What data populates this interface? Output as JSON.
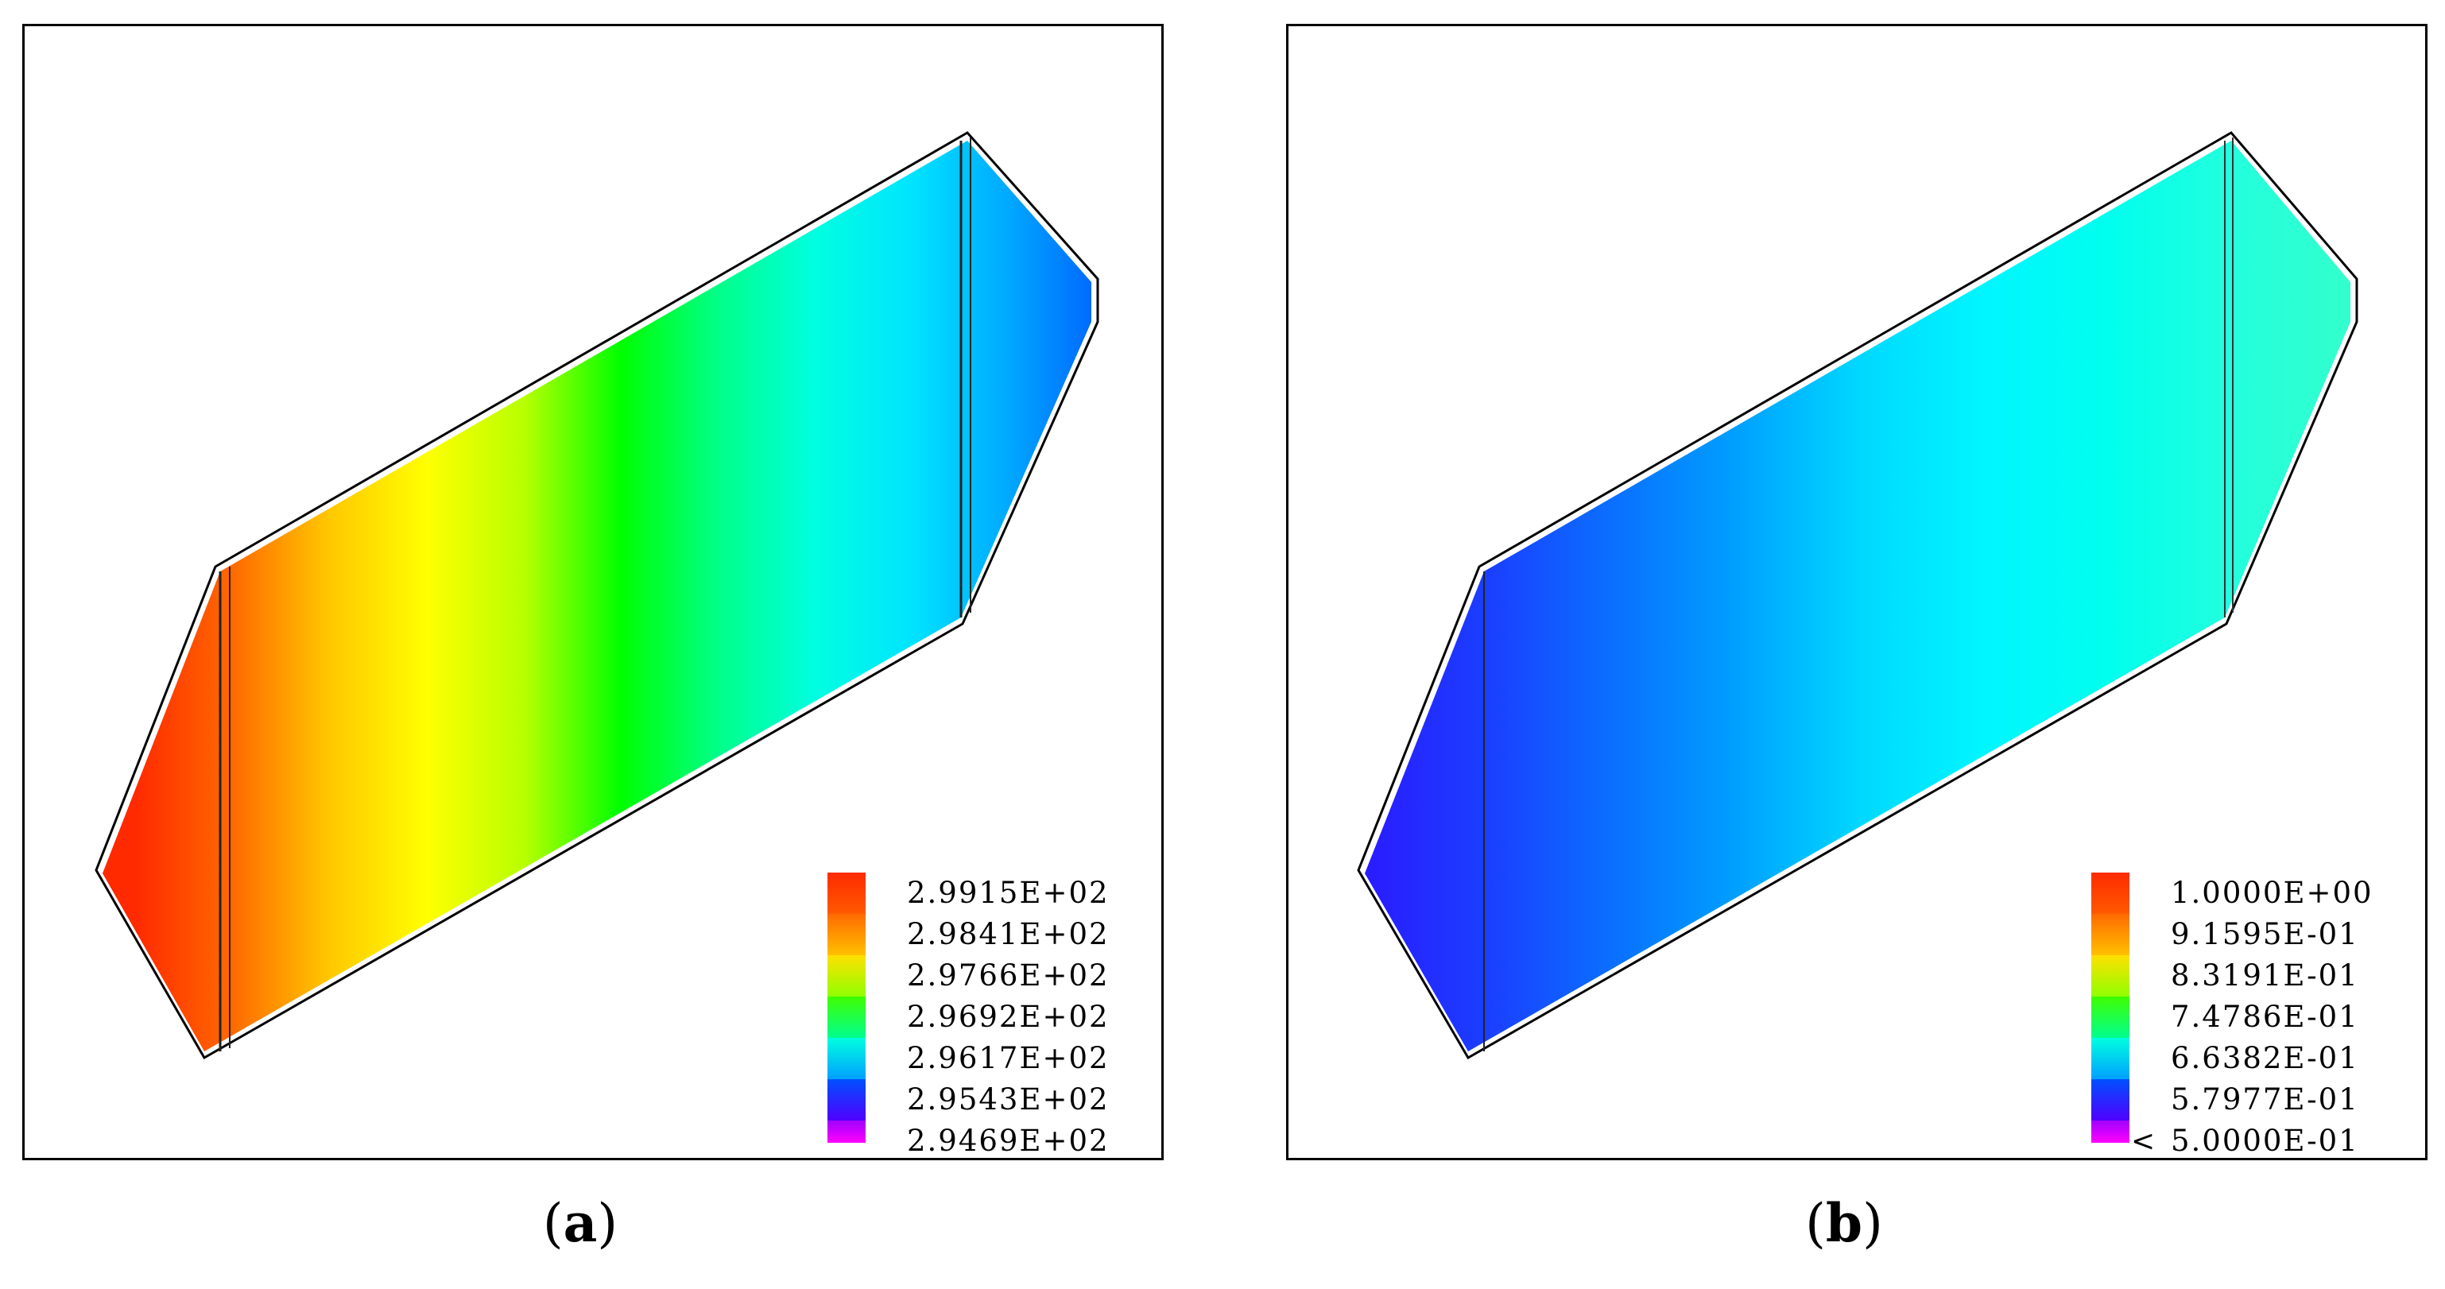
{
  "panels": [
    {
      "id": "a",
      "caption_letter": "a",
      "legend": {
        "labels": [
          "2.9915E+02",
          "2.9841E+02",
          "2.9766E+02",
          "2.9692E+02",
          "2.9617E+02",
          "2.9543E+02",
          "2.9469E+02"
        ],
        "below_marker": ""
      },
      "field_stops": [
        "#ff2a00",
        "#ff6a00",
        "#ffc800",
        "#ffff00",
        "#b8ff00",
        "#00ff00",
        "#00ff88",
        "#00ffe0",
        "#00e4ff",
        "#00a8ff",
        "#0060ff"
      ]
    },
    {
      "id": "b",
      "caption_letter": "b",
      "legend": {
        "labels": [
          "1.0000E+00",
          "9.1595E-01",
          "8.3191E-01",
          "7.4786E-01",
          "6.6382E-01",
          "5.7977E-01",
          "5.0000E-01"
        ],
        "below_marker": "<"
      },
      "field_stops": [
        "#2a1cff",
        "#1a40ff",
        "#0a70ff",
        "#00a0ff",
        "#00d8ff",
        "#00f6ff",
        "#00ffee",
        "#22ffdd",
        "#33ffcc"
      ]
    }
  ],
  "legend_colors": [
    "#ff2a00",
    "#ff7a00",
    "#ffd000",
    "#ffff00",
    "#80ff00",
    "#00ff60",
    "#00ffd0",
    "#00c8ff",
    "#0060ff",
    "#2000ff",
    "#8000ff",
    "#ff00ff"
  ]
}
